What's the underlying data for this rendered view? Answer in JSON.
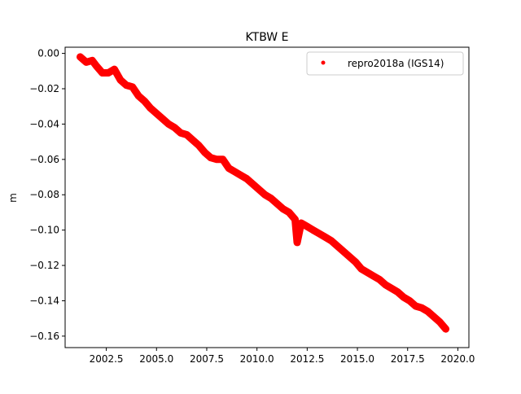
{
  "chart_data": {
    "type": "scatter",
    "title": "KTBW E",
    "xlabel": "",
    "ylabel": "m",
    "xlim": [
      2000.45,
      2020.55
    ],
    "ylim": [
      -0.1665,
      0.0035
    ],
    "x_ticks": [
      {
        "value": 2002.5,
        "label": "2002.5"
      },
      {
        "value": 2005.0,
        "label": "2005.0"
      },
      {
        "value": 2007.5,
        "label": "2007.5"
      },
      {
        "value": 2010.0,
        "label": "2010.0"
      },
      {
        "value": 2012.5,
        "label": "2012.5"
      },
      {
        "value": 2015.0,
        "label": "2015.0"
      },
      {
        "value": 2017.5,
        "label": "2017.5"
      },
      {
        "value": 2020.0,
        "label": "2020.0"
      }
    ],
    "y_ticks": [
      {
        "value": 0.0,
        "label": "0.00"
      },
      {
        "value": -0.02,
        "label": "−0.02"
      },
      {
        "value": -0.04,
        "label": "−0.04"
      },
      {
        "value": -0.06,
        "label": "−0.06"
      },
      {
        "value": -0.08,
        "label": "−0.08"
      },
      {
        "value": -0.1,
        "label": "−0.10"
      },
      {
        "value": -0.12,
        "label": "−0.12"
      },
      {
        "value": -0.14,
        "label": "−0.14"
      },
      {
        "value": -0.16,
        "label": "−0.16"
      }
    ],
    "grid": false,
    "legend_position": "top-right",
    "series": [
      {
        "name": "repro2018a (IGS14)",
        "color": "#ff0000",
        "marker": "point",
        "x": [
          2001.2,
          2001.5,
          2001.8,
          2002.0,
          2002.3,
          2002.6,
          2002.9,
          2003.2,
          2003.5,
          2003.8,
          2004.1,
          2004.4,
          2004.7,
          2005.0,
          2005.3,
          2005.6,
          2005.9,
          2006.2,
          2006.5,
          2006.8,
          2007.1,
          2007.4,
          2007.7,
          2008.0,
          2008.3,
          2008.6,
          2008.9,
          2009.2,
          2009.5,
          2009.8,
          2010.1,
          2010.4,
          2010.7,
          2011.0,
          2011.3,
          2011.6,
          2011.9,
          2012.0,
          2012.2,
          2012.5,
          2012.8,
          2013.1,
          2013.4,
          2013.7,
          2014.0,
          2014.3,
          2014.6,
          2014.9,
          2015.2,
          2015.5,
          2015.8,
          2016.1,
          2016.4,
          2016.7,
          2017.0,
          2017.3,
          2017.6,
          2017.9,
          2018.2,
          2018.5,
          2018.8,
          2019.1,
          2019.4
        ],
        "y": [
          -0.002,
          -0.005,
          -0.004,
          -0.007,
          -0.011,
          -0.011,
          -0.009,
          -0.015,
          -0.018,
          -0.019,
          -0.024,
          -0.027,
          -0.031,
          -0.034,
          -0.037,
          -0.04,
          -0.042,
          -0.045,
          -0.046,
          -0.049,
          -0.052,
          -0.056,
          -0.059,
          -0.06,
          -0.06,
          -0.065,
          -0.067,
          -0.069,
          -0.071,
          -0.074,
          -0.077,
          -0.08,
          -0.082,
          -0.085,
          -0.088,
          -0.09,
          -0.094,
          -0.107,
          -0.096,
          -0.098,
          -0.1,
          -0.102,
          -0.104,
          -0.106,
          -0.109,
          -0.112,
          -0.115,
          -0.118,
          -0.122,
          -0.124,
          -0.126,
          -0.128,
          -0.131,
          -0.133,
          -0.135,
          -0.138,
          -0.14,
          -0.143,
          -0.144,
          -0.146,
          -0.149,
          -0.152,
          -0.156
        ]
      }
    ]
  }
}
